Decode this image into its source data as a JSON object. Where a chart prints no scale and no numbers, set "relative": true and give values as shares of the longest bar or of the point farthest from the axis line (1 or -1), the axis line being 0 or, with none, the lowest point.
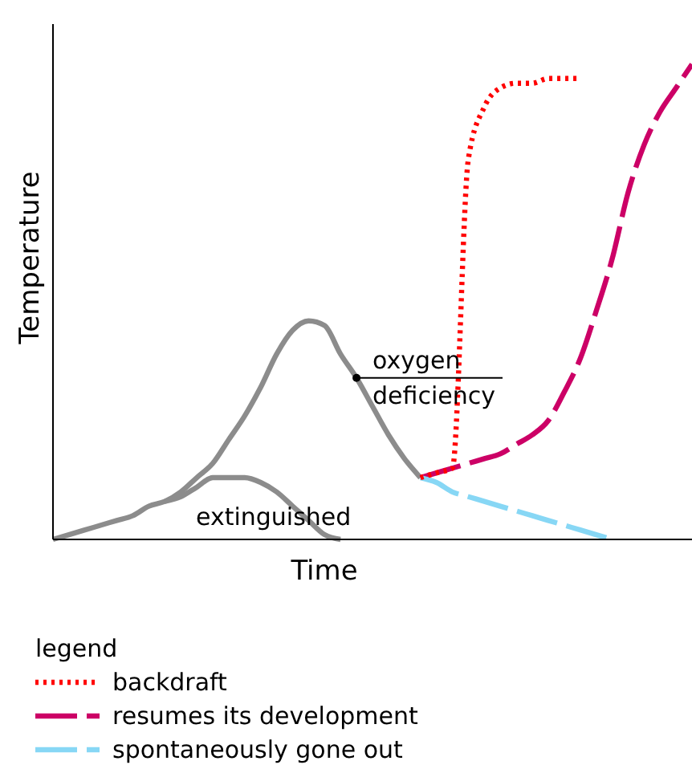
{
  "chart_data": {
    "type": "line",
    "relative": true,
    "xlabel": "Time",
    "ylabel": "Temperature",
    "legend": "bottom",
    "legend_title": "legend",
    "categories": [
      null,
      null,
      null,
      null,
      null,
      null,
      null,
      null,
      null,
      null,
      null,
      null,
      null,
      null,
      null,
      null,
      null,
      null,
      null,
      null,
      null,
      null,
      null,
      null,
      null,
      null,
      null,
      null,
      null,
      null,
      null,
      null,
      null,
      null,
      null,
      null,
      null,
      null,
      null,
      null,
      null
    ],
    "annotations": [
      "oxygen deficiency",
      "extinguished"
    ],
    "series": [
      {
        "color": "#8c8c8c",
        "line_style": "solid",
        "values": [
          0,
          0.01,
          0.02,
          0.03,
          0.04,
          0.05,
          0.07,
          0.08,
          0.1,
          0.13,
          0.16,
          0.21,
          0.26,
          0.32,
          0.39,
          0.44,
          0.46,
          0.45,
          0.39,
          0.34,
          0.28,
          0.22,
          0.17,
          0.13,
          null,
          null,
          null,
          null,
          null,
          null,
          null,
          null,
          null,
          null,
          null,
          null,
          null,
          null,
          null,
          null,
          null
        ]
      },
      {
        "color": "#8c8c8c",
        "line_style": "solid",
        "values": [
          null,
          null,
          null,
          null,
          null,
          null,
          null,
          0.08,
          0.09,
          0.11,
          0.13,
          0.13,
          0.13,
          0.12,
          0.1,
          0.07,
          0.04,
          0.01,
          0,
          null,
          null,
          null,
          null,
          null,
          null,
          null,
          null,
          null,
          null,
          null,
          null,
          null,
          null,
          null,
          null,
          null,
          null,
          null,
          null,
          null,
          null
        ]
      },
      {
        "name": "backdraft",
        "color": "#ff0000",
        "line_style": "dotted",
        "values": [
          null,
          null,
          null,
          null,
          null,
          null,
          null,
          null,
          null,
          null,
          null,
          null,
          null,
          null,
          null,
          null,
          null,
          null,
          null,
          null,
          null,
          null,
          null,
          0.13,
          0.14,
          0.15,
          0.8,
          0.91,
          0.95,
          0.96,
          0.96,
          0.97,
          0.97,
          0.97,
          null,
          null,
          null,
          null,
          null,
          null,
          null
        ]
      },
      {
        "name": "resumes its development",
        "color": "#cc0066",
        "line_style": "dashed",
        "values": [
          null,
          null,
          null,
          null,
          null,
          null,
          null,
          null,
          null,
          null,
          null,
          null,
          null,
          null,
          null,
          null,
          null,
          null,
          null,
          null,
          null,
          null,
          null,
          0.13,
          0.14,
          0.15,
          0.16,
          0.17,
          0.18,
          0.2,
          0.22,
          0.25,
          0.31,
          0.38,
          0.48,
          0.59,
          0.73,
          0.83,
          0.9,
          0.95,
          1
        ]
      },
      {
        "name": "spontaneously gone out",
        "color": "#87d7f5",
        "line_style": "dashed",
        "values": [
          null,
          null,
          null,
          null,
          null,
          null,
          null,
          null,
          null,
          null,
          null,
          null,
          null,
          null,
          null,
          null,
          null,
          null,
          null,
          null,
          null,
          null,
          null,
          0.13,
          0.12,
          0.1,
          0.09,
          0.08,
          0.07,
          0.06,
          0.05,
          0.04,
          0.03,
          0.02,
          0.01,
          0,
          null,
          null,
          null,
          null,
          null
        ]
      }
    ]
  }
}
